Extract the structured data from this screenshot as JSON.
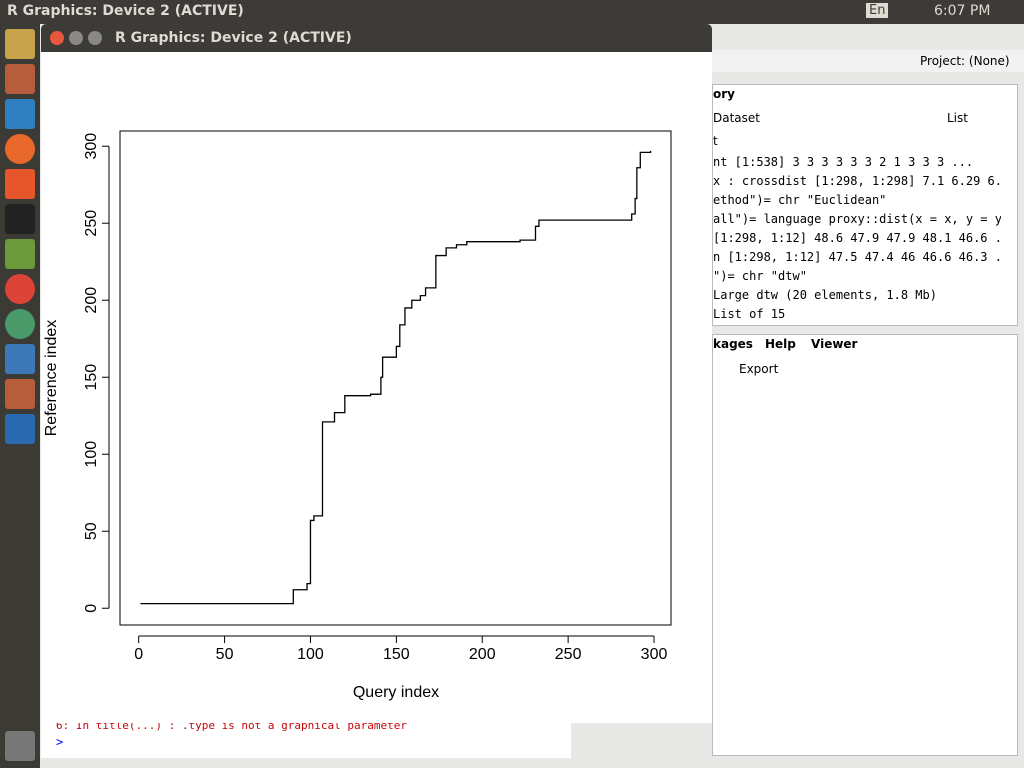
{
  "topbar": {
    "title": "R Graphics: Device 2 (ACTIVE)",
    "lang": "En",
    "time": "6:07 PM"
  },
  "window": {
    "title": "R Graphics: Device 2 (ACTIVE)"
  },
  "rstudio": {
    "project": "Project: (None)",
    "env_tab": "ory",
    "dataset": "Dataset",
    "list": "List",
    "scope": "t",
    "env_lines": [
      "nt [1:538] 3 3 3 3 3 3 2 1 3 3 3 ...",
      "x : crossdist [1:298, 1:298] 7.1 6.29 6...",
      "ethod\")= chr \"Euclidean\"",
      "all\")= language proxy::dist(x = x, y = y...",
      "[1:298, 1:12] 48.6 47.9 47.9 48.1 46.6 ...",
      "n [1:298, 1:12] 47.5 47.4 46 46.6 46.3 ...",
      "\")= chr \"dtw\"",
      "Large dtw (20 elements, 1.8 Mb)",
      "List of 15"
    ],
    "tabs": [
      "kages",
      "Help",
      "Viewer"
    ],
    "export": "Export",
    "console": [
      "6: In title(...) :  .type  is not a graphical parameter",
      ">"
    ]
  },
  "chart_data": {
    "type": "line",
    "x_label": "Query index",
    "y_label": "Reference index",
    "color": "#000000",
    "xlim": [
      -10.88,
      309.88
    ],
    "ylim": [
      -10.88,
      309.88
    ],
    "xticks": [
      0,
      50,
      100,
      150,
      200,
      250,
      300
    ],
    "yticks": [
      0,
      50,
      100,
      150,
      200,
      250,
      300
    ],
    "x": [
      1,
      90,
      90,
      98,
      98,
      100,
      100,
      102,
      102,
      107,
      107,
      114,
      114,
      120,
      120,
      135,
      135,
      141,
      141,
      142,
      142,
      150,
      150,
      152,
      152,
      155,
      155,
      159,
      159,
      164,
      164,
      167,
      167,
      173,
      173,
      179,
      179,
      185,
      185,
      191,
      191,
      222,
      222,
      231,
      231,
      233,
      233,
      287,
      287,
      289,
      289,
      290,
      290,
      292,
      292,
      298,
      298
    ],
    "values": [
      3,
      3,
      12,
      12,
      16,
      16,
      57,
      57,
      60,
      60,
      121,
      121,
      127,
      127,
      138,
      138,
      139,
      139,
      150,
      150,
      163,
      163,
      170,
      170,
      184,
      184,
      195,
      195,
      200,
      200,
      203,
      203,
      208,
      208,
      229,
      229,
      234,
      234,
      236,
      236,
      238,
      238,
      239,
      239,
      248,
      248,
      252,
      252,
      256,
      256,
      266,
      266,
      286,
      286,
      296,
      296,
      297
    ]
  }
}
